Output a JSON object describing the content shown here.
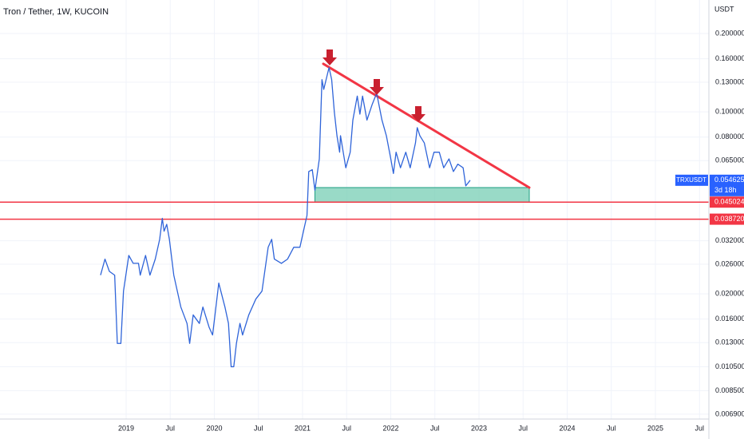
{
  "chart_data": {
    "type": "line",
    "title": "Tron / Tether, 1W, KUCOIN",
    "y_unit": "USDT",
    "log_y": true,
    "grid": true,
    "x": [
      2018.71,
      2018.76,
      2018.81,
      2018.87,
      2018.9,
      2018.94,
      2018.97,
      2019.03,
      2019.08,
      2019.14,
      2019.16,
      2019.22,
      2019.27,
      2019.33,
      2019.38,
      2019.41,
      2019.43,
      2019.46,
      2019.49,
      2019.54,
      2019.62,
      2019.69,
      2019.72,
      2019.76,
      2019.83,
      2019.87,
      2019.94,
      2019.98,
      2020.05,
      2020.12,
      2020.16,
      2020.19,
      2020.22,
      2020.25,
      2020.29,
      2020.32,
      2020.39,
      2020.47,
      2020.54,
      2020.61,
      2020.65,
      2020.68,
      2020.76,
      2020.83,
      2020.9,
      2020.97,
      2021.01,
      2021.05,
      2021.07,
      2021.11,
      2021.14,
      2021.19,
      2021.22,
      2021.24,
      2021.3,
      2021.33,
      2021.36,
      2021.39,
      2021.42,
      2021.43,
      2021.49,
      2021.54,
      2021.57,
      2021.62,
      2021.65,
      2021.68,
      2021.73,
      2021.79,
      2021.84,
      2021.9,
      2021.95,
      2022.0,
      2022.03,
      2022.06,
      2022.11,
      2022.17,
      2022.22,
      2022.28,
      2022.3,
      2022.33,
      2022.38,
      2022.44,
      2022.49,
      2022.55,
      2022.6,
      2022.66,
      2022.71,
      2022.76,
      2022.82,
      2022.85,
      2022.87,
      2022.9
    ],
    "series": [
      {
        "name": "TRXUSDT",
        "color": "#2f64d9",
        "values": [
          0.0236,
          0.0272,
          0.0244,
          0.0236,
          0.0129,
          0.0129,
          0.0205,
          0.0281,
          0.0262,
          0.0262,
          0.0236,
          0.0281,
          0.0236,
          0.0272,
          0.0324,
          0.039,
          0.0348,
          0.037,
          0.0324,
          0.0236,
          0.0178,
          0.0154,
          0.0129,
          0.0166,
          0.0154,
          0.0178,
          0.0149,
          0.0139,
          0.022,
          0.0178,
          0.0154,
          0.0105,
          0.0105,
          0.0129,
          0.0154,
          0.0139,
          0.0166,
          0.0191,
          0.0205,
          0.0302,
          0.0324,
          0.0272,
          0.0262,
          0.0272,
          0.0302,
          0.0302,
          0.0348,
          0.04,
          0.059,
          0.06,
          0.05,
          0.066,
          0.133,
          0.122,
          0.148,
          0.133,
          0.1,
          0.081,
          0.07,
          0.081,
          0.061,
          0.07,
          0.093,
          0.115,
          0.098,
          0.115,
          0.093,
          0.107,
          0.118,
          0.093,
          0.081,
          0.066,
          0.058,
          0.07,
          0.061,
          0.07,
          0.061,
          0.076,
          0.087,
          0.081,
          0.076,
          0.061,
          0.07,
          0.07,
          0.061,
          0.066,
          0.059,
          0.063,
          0.061,
          0.052,
          0.053,
          0.054625
        ]
      }
    ],
    "price_marker": {
      "value": 0.054625,
      "label": "0.054625",
      "countdown": "3d 18h",
      "color": "#2962ff"
    },
    "hlines": [
      {
        "value": 0.045024,
        "label": "0.045024",
        "color": "#f23645"
      },
      {
        "value": 0.03872,
        "label": "0.038720",
        "color": "#f23645"
      }
    ],
    "trendline": {
      "x": [
        2021.235,
        2023.57
      ],
      "y": [
        0.153,
        0.0512
      ],
      "color": "#f23645"
    },
    "zone": {
      "x": [
        2021.14,
        2023.57
      ],
      "y": [
        0.045024,
        0.0512
      ],
      "color": "#7fd1b9"
    },
    "xlim": [
      2017.57,
      2025.606
    ],
    "ylim": [
      0.00661,
      0.269
    ],
    "xticks": [
      2019,
      {
        "value": 2019.5,
        "label": "Jul"
      },
      2020,
      {
        "value": 2020.5,
        "label": "Jul"
      },
      2021,
      {
        "value": 2021.5,
        "label": "Jul"
      },
      2022,
      {
        "value": 2022.5,
        "label": "Jul"
      },
      2023,
      {
        "value": 2023.5,
        "label": "Jul"
      },
      2024,
      {
        "value": 2024.5,
        "label": "Jul"
      },
      2025,
      {
        "value": 2025.5,
        "label": "Jul"
      }
    ],
    "yticks": [
      {
        "value": 0.2,
        "label": "0.200000"
      },
      {
        "value": 0.16,
        "label": "0.160000"
      },
      {
        "value": 0.13,
        "label": "0.130000"
      },
      {
        "value": 0.1,
        "label": "0.100000"
      },
      {
        "value": 0.08,
        "label": "0.080000"
      },
      {
        "value": 0.065,
        "label": "0.065000"
      },
      {
        "value": 0.032,
        "label": "0.032000"
      },
      {
        "value": 0.026,
        "label": "0.026000"
      },
      {
        "value": 0.02,
        "label": "0.020000"
      },
      {
        "value": 0.016,
        "label": "0.016000"
      },
      {
        "value": 0.013,
        "label": "0.013000"
      },
      {
        "value": 0.0105,
        "label": "0.010500"
      },
      {
        "value": 0.0085,
        "label": "0.008500"
      },
      {
        "value": 0.0069,
        "label": "0.006900"
      }
    ]
  }
}
